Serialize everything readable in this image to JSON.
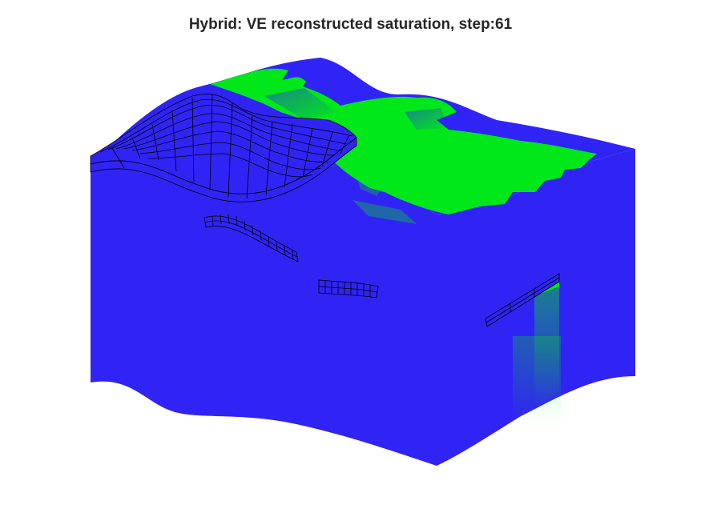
{
  "figure": {
    "title": "Hybrid: VE reconstructed saturation, step:61",
    "colors": {
      "background": "#ffffff",
      "brine": "#3024f5",
      "co2": "#00e81a",
      "grid_lines": "#000000",
      "title": "#262626"
    }
  }
}
